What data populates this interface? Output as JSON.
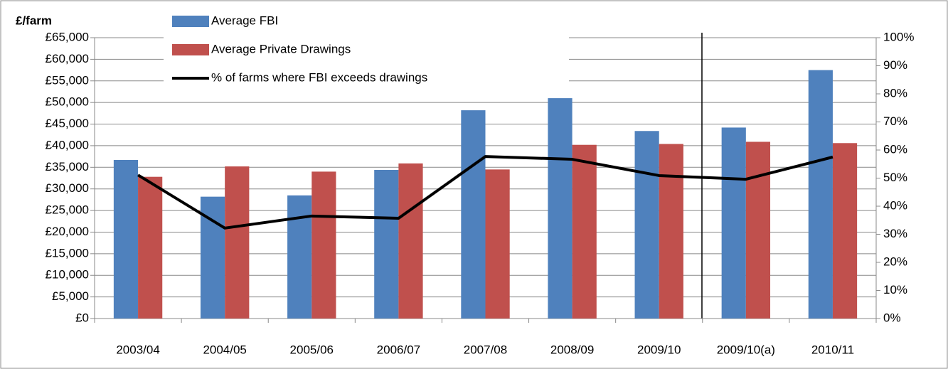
{
  "chart_data": {
    "type": "bar-line",
    "y_label": "£/farm",
    "categories": [
      "2003/04",
      "2004/05",
      "2005/06",
      "2006/07",
      "2007/08",
      "2008/09",
      "2009/10",
      "2009/10(a)",
      "2010/11"
    ],
    "series": [
      {
        "name": "Average FBI",
        "type": "bar",
        "color": "#4f81bd",
        "values": [
          36700,
          28200,
          28500,
          34400,
          48200,
          51000,
          43400,
          44200,
          57500
        ]
      },
      {
        "name": "Average Private Drawings",
        "type": "bar",
        "color": "#c0504d",
        "values": [
          32800,
          35200,
          34000,
          35900,
          34500,
          40200,
          40400,
          40900,
          40600
        ]
      },
      {
        "name": "% of farms where FBI exceeds drawings",
        "type": "line",
        "axis": "y2",
        "color": "#000000",
        "values": [
          51.1,
          32.2,
          36.5,
          35.7,
          57.7,
          56.7,
          50.9,
          49.6,
          57.5
        ]
      }
    ],
    "ylim": [
      0,
      65000
    ],
    "yticks": [
      {
        "value": 0,
        "label": "£0"
      },
      {
        "value": 5000,
        "label": "£5,000"
      },
      {
        "value": 10000,
        "label": "£10,000"
      },
      {
        "value": 15000,
        "label": "£15,000"
      },
      {
        "value": 20000,
        "label": "£20,000"
      },
      {
        "value": 25000,
        "label": "£25,000"
      },
      {
        "value": 30000,
        "label": "£30,000"
      },
      {
        "value": 35000,
        "label": "£35,000"
      },
      {
        "value": 40000,
        "label": "£40,000"
      },
      {
        "value": 45000,
        "label": "£45,000"
      },
      {
        "value": 50000,
        "label": "£50,000"
      },
      {
        "value": 55000,
        "label": "£55,000"
      },
      {
        "value": 60000,
        "label": "£60,000"
      },
      {
        "value": 65000,
        "label": "£65,000"
      }
    ],
    "y2lim": [
      0,
      100
    ],
    "y2ticks": [
      {
        "value": 0,
        "label": "0%"
      },
      {
        "value": 10,
        "label": "10%"
      },
      {
        "value": 20,
        "label": "20%"
      },
      {
        "value": 30,
        "label": "30%"
      },
      {
        "value": 40,
        "label": "40%"
      },
      {
        "value": 50,
        "label": "50%"
      },
      {
        "value": 60,
        "label": "60%"
      },
      {
        "value": 70,
        "label": "70%"
      },
      {
        "value": 80,
        "label": "80%"
      },
      {
        "value": 90,
        "label": "90%"
      },
      {
        "value": 100,
        "label": "100%"
      }
    ],
    "grid": true
  }
}
